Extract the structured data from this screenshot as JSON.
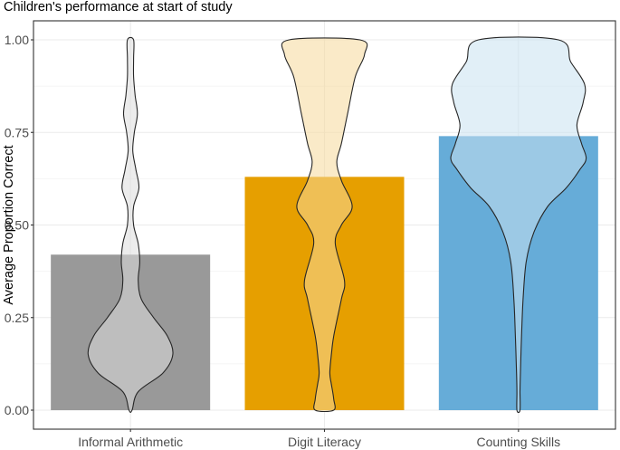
{
  "chart_data": {
    "type": "bar",
    "title": "Children's performance at start of study",
    "xlabel": "",
    "ylabel": "Average Proportion Correct",
    "ylim": [
      0,
      1
    ],
    "y_ticks": [
      "0.00",
      "0.25",
      "0.50",
      "0.75",
      "1.00"
    ],
    "y_tick_values": [
      0,
      0.25,
      0.5,
      0.75,
      1
    ],
    "grid": true,
    "legend": "none",
    "categories": [
      "Informal Arithmetic",
      "Digit Literacy",
      "Counting Skills"
    ],
    "values": [
      0.42,
      0.63,
      0.74
    ],
    "colors": {
      "bars": [
        "#999999",
        "#E69F00",
        "#66ACD8"
      ],
      "violins": [
        "#DCDCDC",
        "#F6D99B",
        "#C9E1F0"
      ],
      "outline": "#262626",
      "grid": "#ebebeb",
      "panel_border": "#333333"
    },
    "violin_widths": [
      [
        [
          0.0,
          0.02
        ],
        [
          0.05,
          0.1
        ],
        [
          0.1,
          0.42
        ],
        [
          0.15,
          0.55
        ],
        [
          0.2,
          0.48
        ],
        [
          0.25,
          0.3
        ],
        [
          0.3,
          0.14
        ],
        [
          0.35,
          0.1
        ],
        [
          0.4,
          0.12
        ],
        [
          0.45,
          0.1
        ],
        [
          0.5,
          0.04
        ],
        [
          0.55,
          0.04
        ],
        [
          0.6,
          0.11
        ],
        [
          0.65,
          0.07
        ],
        [
          0.7,
          0.03
        ],
        [
          0.75,
          0.05
        ],
        [
          0.8,
          0.09
        ],
        [
          0.85,
          0.06
        ],
        [
          0.9,
          0.04
        ],
        [
          0.95,
          0.04
        ],
        [
          1.0,
          0.04
        ]
      ],
      [
        [
          0.0,
          0.12
        ],
        [
          0.03,
          0.12
        ],
        [
          0.07,
          0.09
        ],
        [
          0.1,
          0.07
        ],
        [
          0.15,
          0.09
        ],
        [
          0.2,
          0.12
        ],
        [
          0.3,
          0.22
        ],
        [
          0.35,
          0.26
        ],
        [
          0.45,
          0.14
        ],
        [
          0.5,
          0.22
        ],
        [
          0.55,
          0.36
        ],
        [
          0.62,
          0.22
        ],
        [
          0.67,
          0.16
        ],
        [
          0.72,
          0.22
        ],
        [
          0.8,
          0.3
        ],
        [
          0.9,
          0.4
        ],
        [
          0.96,
          0.52
        ],
        [
          1.0,
          0.46
        ]
      ],
      [
        [
          0.0,
          0.02
        ],
        [
          0.05,
          0.02
        ],
        [
          0.1,
          0.025
        ],
        [
          0.2,
          0.04
        ],
        [
          0.3,
          0.06
        ],
        [
          0.4,
          0.1
        ],
        [
          0.48,
          0.2
        ],
        [
          0.55,
          0.38
        ],
        [
          0.6,
          0.62
        ],
        [
          0.65,
          0.8
        ],
        [
          0.68,
          0.88
        ],
        [
          0.72,
          0.82
        ],
        [
          0.77,
          0.76
        ],
        [
          0.83,
          0.84
        ],
        [
          0.88,
          0.86
        ],
        [
          0.94,
          0.68
        ],
        [
          1.0,
          0.52
        ]
      ]
    ]
  }
}
